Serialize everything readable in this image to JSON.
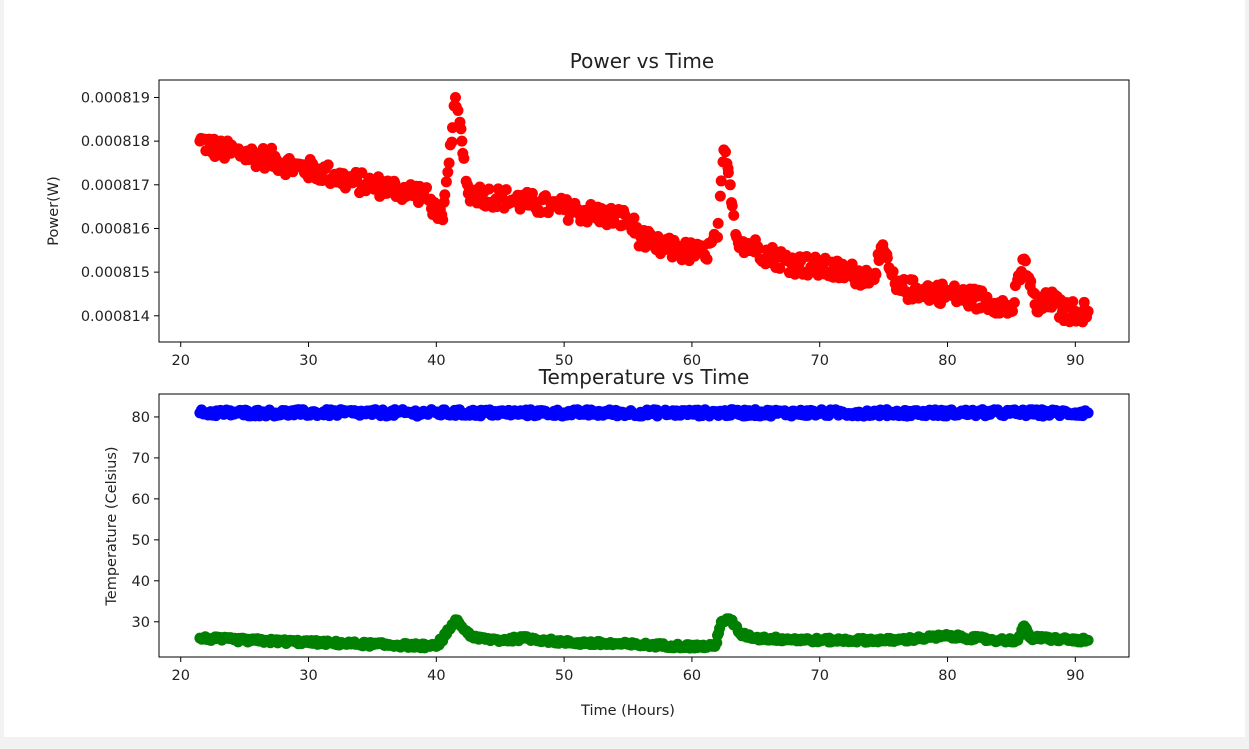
{
  "chart_data": [
    {
      "type": "scatter",
      "title": "Power vs Time",
      "xlabel": "",
      "ylabel": "Power(W)",
      "xlim": [
        18.3,
        94.2
      ],
      "ylim": [
        0.0008134,
        0.0008194
      ],
      "xticks": [
        20,
        30,
        40,
        50,
        60,
        70,
        80,
        90
      ],
      "yticks": [
        0.000814,
        0.000815,
        0.000816,
        0.000817,
        0.000818,
        0.000819
      ],
      "ytick_labels": [
        "0.000814",
        "0.000815",
        "0.000816",
        "0.000817",
        "0.000818",
        "0.000819"
      ],
      "grid": false,
      "series": [
        {
          "color": "#ff0000",
          "x": [
            21.5,
            23,
            25,
            27,
            29,
            31,
            33,
            35,
            37,
            39,
            40.5,
            41,
            41.5,
            42,
            42.5,
            43,
            45,
            47,
            49,
            51,
            53,
            55,
            56,
            57,
            59,
            61,
            62,
            62.5,
            63,
            63.5,
            64,
            66,
            68,
            70,
            72,
            74,
            75,
            76,
            78,
            80,
            82,
            84,
            85,
            86,
            87,
            88,
            89,
            90,
            91
          ],
          "y": [
            0.000818,
            0.0008178,
            0.0008177,
            0.0008176,
            0.0008174,
            0.0008173,
            0.0008171,
            0.000817,
            0.0008169,
            0.0008168,
            0.0008162,
            0.0008175,
            0.000819,
            0.000818,
            0.0008168,
            0.0008168,
            0.0008167,
            0.0008166,
            0.0008165,
            0.0008164,
            0.0008163,
            0.0008162,
            0.0008158,
            0.0008156,
            0.0008155,
            0.0008154,
            0.0008158,
            0.0008178,
            0.000817,
            0.0008158,
            0.0008157,
            0.0008154,
            0.0008152,
            0.0008151,
            0.000815,
            0.0008149,
            0.0008155,
            0.0008146,
            0.0008146,
            0.0008145,
            0.0008144,
            0.0008143,
            0.0008141,
            0.0008153,
            0.0008141,
            0.0008144,
            0.0008141,
            0.0008141,
            0.0008141
          ],
          "spread": [
            2.5e-07,
            2.5e-07,
            2.5e-07,
            2.5e-07,
            2.5e-07,
            2.5e-07,
            2.5e-07,
            2.5e-07,
            2.5e-07,
            2.5e-07,
            1.5e-07,
            1.5e-07,
            1e-07,
            1.5e-07,
            2.5e-07,
            2.5e-07,
            2.5e-07,
            2.5e-07,
            2.5e-07,
            2.5e-07,
            2.5e-07,
            2.5e-07,
            2.5e-07,
            2.5e-07,
            2.5e-07,
            2.5e-07,
            1.5e-07,
            1.5e-07,
            1.5e-07,
            2.5e-07,
            2.5e-07,
            2.5e-07,
            2.5e-07,
            2.5e-07,
            2.5e-07,
            2.5e-07,
            2e-07,
            2.5e-07,
            2.5e-07,
            2.5e-07,
            2.5e-07,
            2.5e-07,
            2.5e-07,
            1.5e-07,
            2.5e-07,
            2.5e-07,
            2.5e-07,
            2.5e-07,
            2.5e-07
          ]
        }
      ]
    },
    {
      "type": "scatter",
      "title": "Temperature vs Time",
      "xlabel": "Time (Hours)",
      "ylabel": "Temperature (Celsius)",
      "xlim": [
        18.3,
        94.2
      ],
      "ylim": [
        21.4,
        85.6
      ],
      "xticks": [
        20,
        30,
        40,
        50,
        60,
        70,
        80,
        90
      ],
      "yticks": [
        30,
        40,
        50,
        60,
        70,
        80
      ],
      "grid": false,
      "series": [
        {
          "color": "#0000ff",
          "x": [
            21.5,
            30,
            40,
            50,
            60,
            70,
            80,
            91
          ],
          "y": [
            81,
            81,
            81,
            81,
            81,
            81,
            81,
            81
          ],
          "spread": [
            0.8,
            0.8,
            0.8,
            0.8,
            0.8,
            0.8,
            0.8,
            0.8
          ]
        },
        {
          "color": "#008000",
          "x": [
            21.5,
            25,
            30,
            35,
            40,
            40.8,
            41.5,
            42.2,
            43,
            45,
            47,
            50,
            55,
            60,
            61.8,
            62.3,
            63,
            63.8,
            65,
            70,
            75,
            76,
            78,
            80,
            84,
            85.5,
            86,
            86.5,
            87.5,
            90,
            91
          ],
          "y": [
            26,
            25.5,
            25,
            24.5,
            24,
            27,
            30.5,
            28,
            26,
            25.5,
            26,
            25,
            24.5,
            24,
            24,
            30,
            30.5,
            27,
            26,
            25.5,
            25.5,
            25.5,
            26,
            26.5,
            25.5,
            25.5,
            29,
            26,
            26,
            25.5,
            25.5
          ],
          "spread": [
            0.5,
            0.5,
            0.5,
            0.5,
            0.5,
            0.5,
            0.5,
            0.5,
            0.5,
            0.5,
            0.5,
            0.5,
            0.5,
            0.5,
            0.5,
            0.5,
            0.5,
            0.5,
            0.5,
            0.5,
            0.5,
            0.5,
            0.5,
            0.5,
            0.5,
            0.5,
            0.5,
            0.5,
            0.5,
            0.5,
            0.5
          ]
        }
      ]
    }
  ]
}
